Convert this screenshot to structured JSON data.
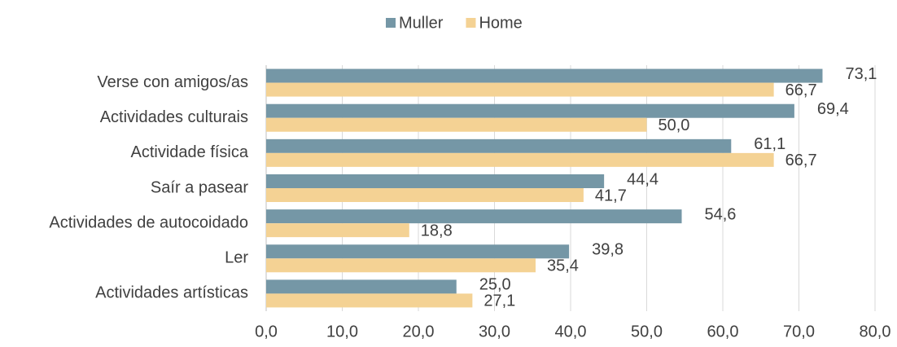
{
  "chart_data": {
    "type": "bar",
    "orientation": "horizontal",
    "categories": [
      "Verse con amigos/as",
      "Actividades culturais",
      "Actividade física",
      "Saír a pasear",
      "Actividades de autocoidado",
      "Ler",
      "Actividades artísticas"
    ],
    "series": [
      {
        "name": "Muller",
        "color": "#7597a6",
        "values": [
          73.1,
          69.4,
          61.1,
          44.4,
          54.6,
          39.8,
          25.0
        ],
        "value_labels": [
          "73,1",
          "69,4",
          "61,1",
          "44,4",
          "54,6",
          "39,8",
          "25,0"
        ]
      },
      {
        "name": "Home",
        "color": "#f4d294",
        "values": [
          66.7,
          50.0,
          66.7,
          41.7,
          18.8,
          35.4,
          27.1
        ],
        "value_labels": [
          "66,7",
          "50,0",
          "66,7",
          "41,7",
          "18,8",
          "35,4",
          "27,1"
        ]
      }
    ],
    "xlim": [
      0,
      80
    ],
    "xticks": [
      {
        "value": 0,
        "label": "0,0"
      },
      {
        "value": 10,
        "label": "10,0"
      },
      {
        "value": 20,
        "label": "20,0"
      },
      {
        "value": 30,
        "label": "30,0"
      },
      {
        "value": 40,
        "label": "40,0"
      },
      {
        "value": 50,
        "label": "50,0"
      },
      {
        "value": 60,
        "label": "60,0"
      },
      {
        "value": 70,
        "label": "70,0"
      },
      {
        "value": 80,
        "label": "80,0"
      }
    ],
    "grid": true,
    "legend": "top"
  }
}
